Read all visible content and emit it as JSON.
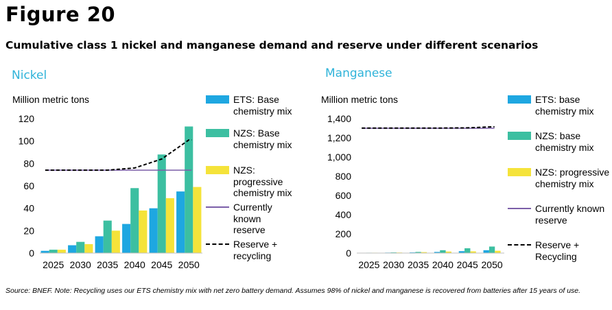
{
  "figure_label": "Figure 20",
  "subtitle": "Cumulative class 1 nickel and manganese demand and reserve under different scenarios",
  "source": "Source: BNEF. Note: Recycling uses our ETS chemistry mix with net zero battery demand. Assumes 98% of nickel and manganese is recovered from batteries after 15 years of use.",
  "colors": {
    "ets": "#1ea7e1",
    "nzs_base": "#3cbfa1",
    "nzs_prog": "#f5e33a",
    "current": "#7b5ea8",
    "recycling": "#000000",
    "panel_title": "#2fb3d9"
  },
  "chart_data": [
    {
      "type": "bar",
      "panel_title": "Nickel",
      "ylabel": "Million metric tons",
      "categories": [
        "2025",
        "2030",
        "2035",
        "2040",
        "2045",
        "2050"
      ],
      "ylim": [
        0,
        120
      ],
      "yticks": [
        "0",
        "20",
        "40",
        "60",
        "80",
        "100",
        "120"
      ],
      "series": [
        {
          "name": "ETS: Base chemistry mix",
          "values": [
            2,
            7,
            15,
            26,
            40,
            55
          ]
        },
        {
          "name": "NZS: Base chemistry mix",
          "values": [
            3,
            10,
            29,
            58,
            88,
            113
          ]
        },
        {
          "name": "NZS: progressive chemistry mix",
          "values": [
            3,
            8,
            20,
            38,
            49,
            59
          ]
        }
      ],
      "lines": [
        {
          "name": "Currently known reserve",
          "values": [
            74,
            74,
            74,
            74,
            74,
            74
          ]
        },
        {
          "name": "Reserve + recycling",
          "values": [
            74,
            74,
            74,
            76,
            84,
            101
          ]
        }
      ],
      "legend": [
        "ETS: Base chemistry mix",
        "NZS: Base chemistry mix",
        "NZS: progressive chemistry mix",
        "Currently known reserve",
        "Reserve + recycling"
      ]
    },
    {
      "type": "bar",
      "panel_title": "Manganese",
      "ylabel": "Million metric tons",
      "categories": [
        "2025",
        "2030",
        "2035",
        "2040",
        "2045",
        "2050"
      ],
      "ylim": [
        0,
        1400
      ],
      "yticks": [
        "0",
        "200",
        "400",
        "600",
        "800",
        "1,000",
        "1,200",
        "1,400"
      ],
      "series": [
        {
          "name": "ETS: base chemistry mix",
          "values": [
            3,
            5,
            7,
            12,
            20,
            30
          ]
        },
        {
          "name": "NZS: base chemistry mix",
          "values": [
            4,
            7,
            12,
            30,
            50,
            68
          ]
        },
        {
          "name": "NZS: progressive chemistry mix",
          "values": [
            4,
            6,
            10,
            16,
            18,
            24
          ]
        }
      ],
      "lines": [
        {
          "name": "Currently known reserve",
          "values": [
            1300,
            1300,
            1300,
            1300,
            1300,
            1300
          ]
        },
        {
          "name": "Reserve + Recycling",
          "values": [
            1302,
            1302,
            1302,
            1302,
            1304,
            1315
          ]
        }
      ],
      "legend": [
        "ETS: base chemistry mix",
        "NZS: base chemistry mix",
        "NZS: progressive chemistry mix",
        "Currently known reserve",
        "Reserve + Recycling"
      ]
    }
  ]
}
